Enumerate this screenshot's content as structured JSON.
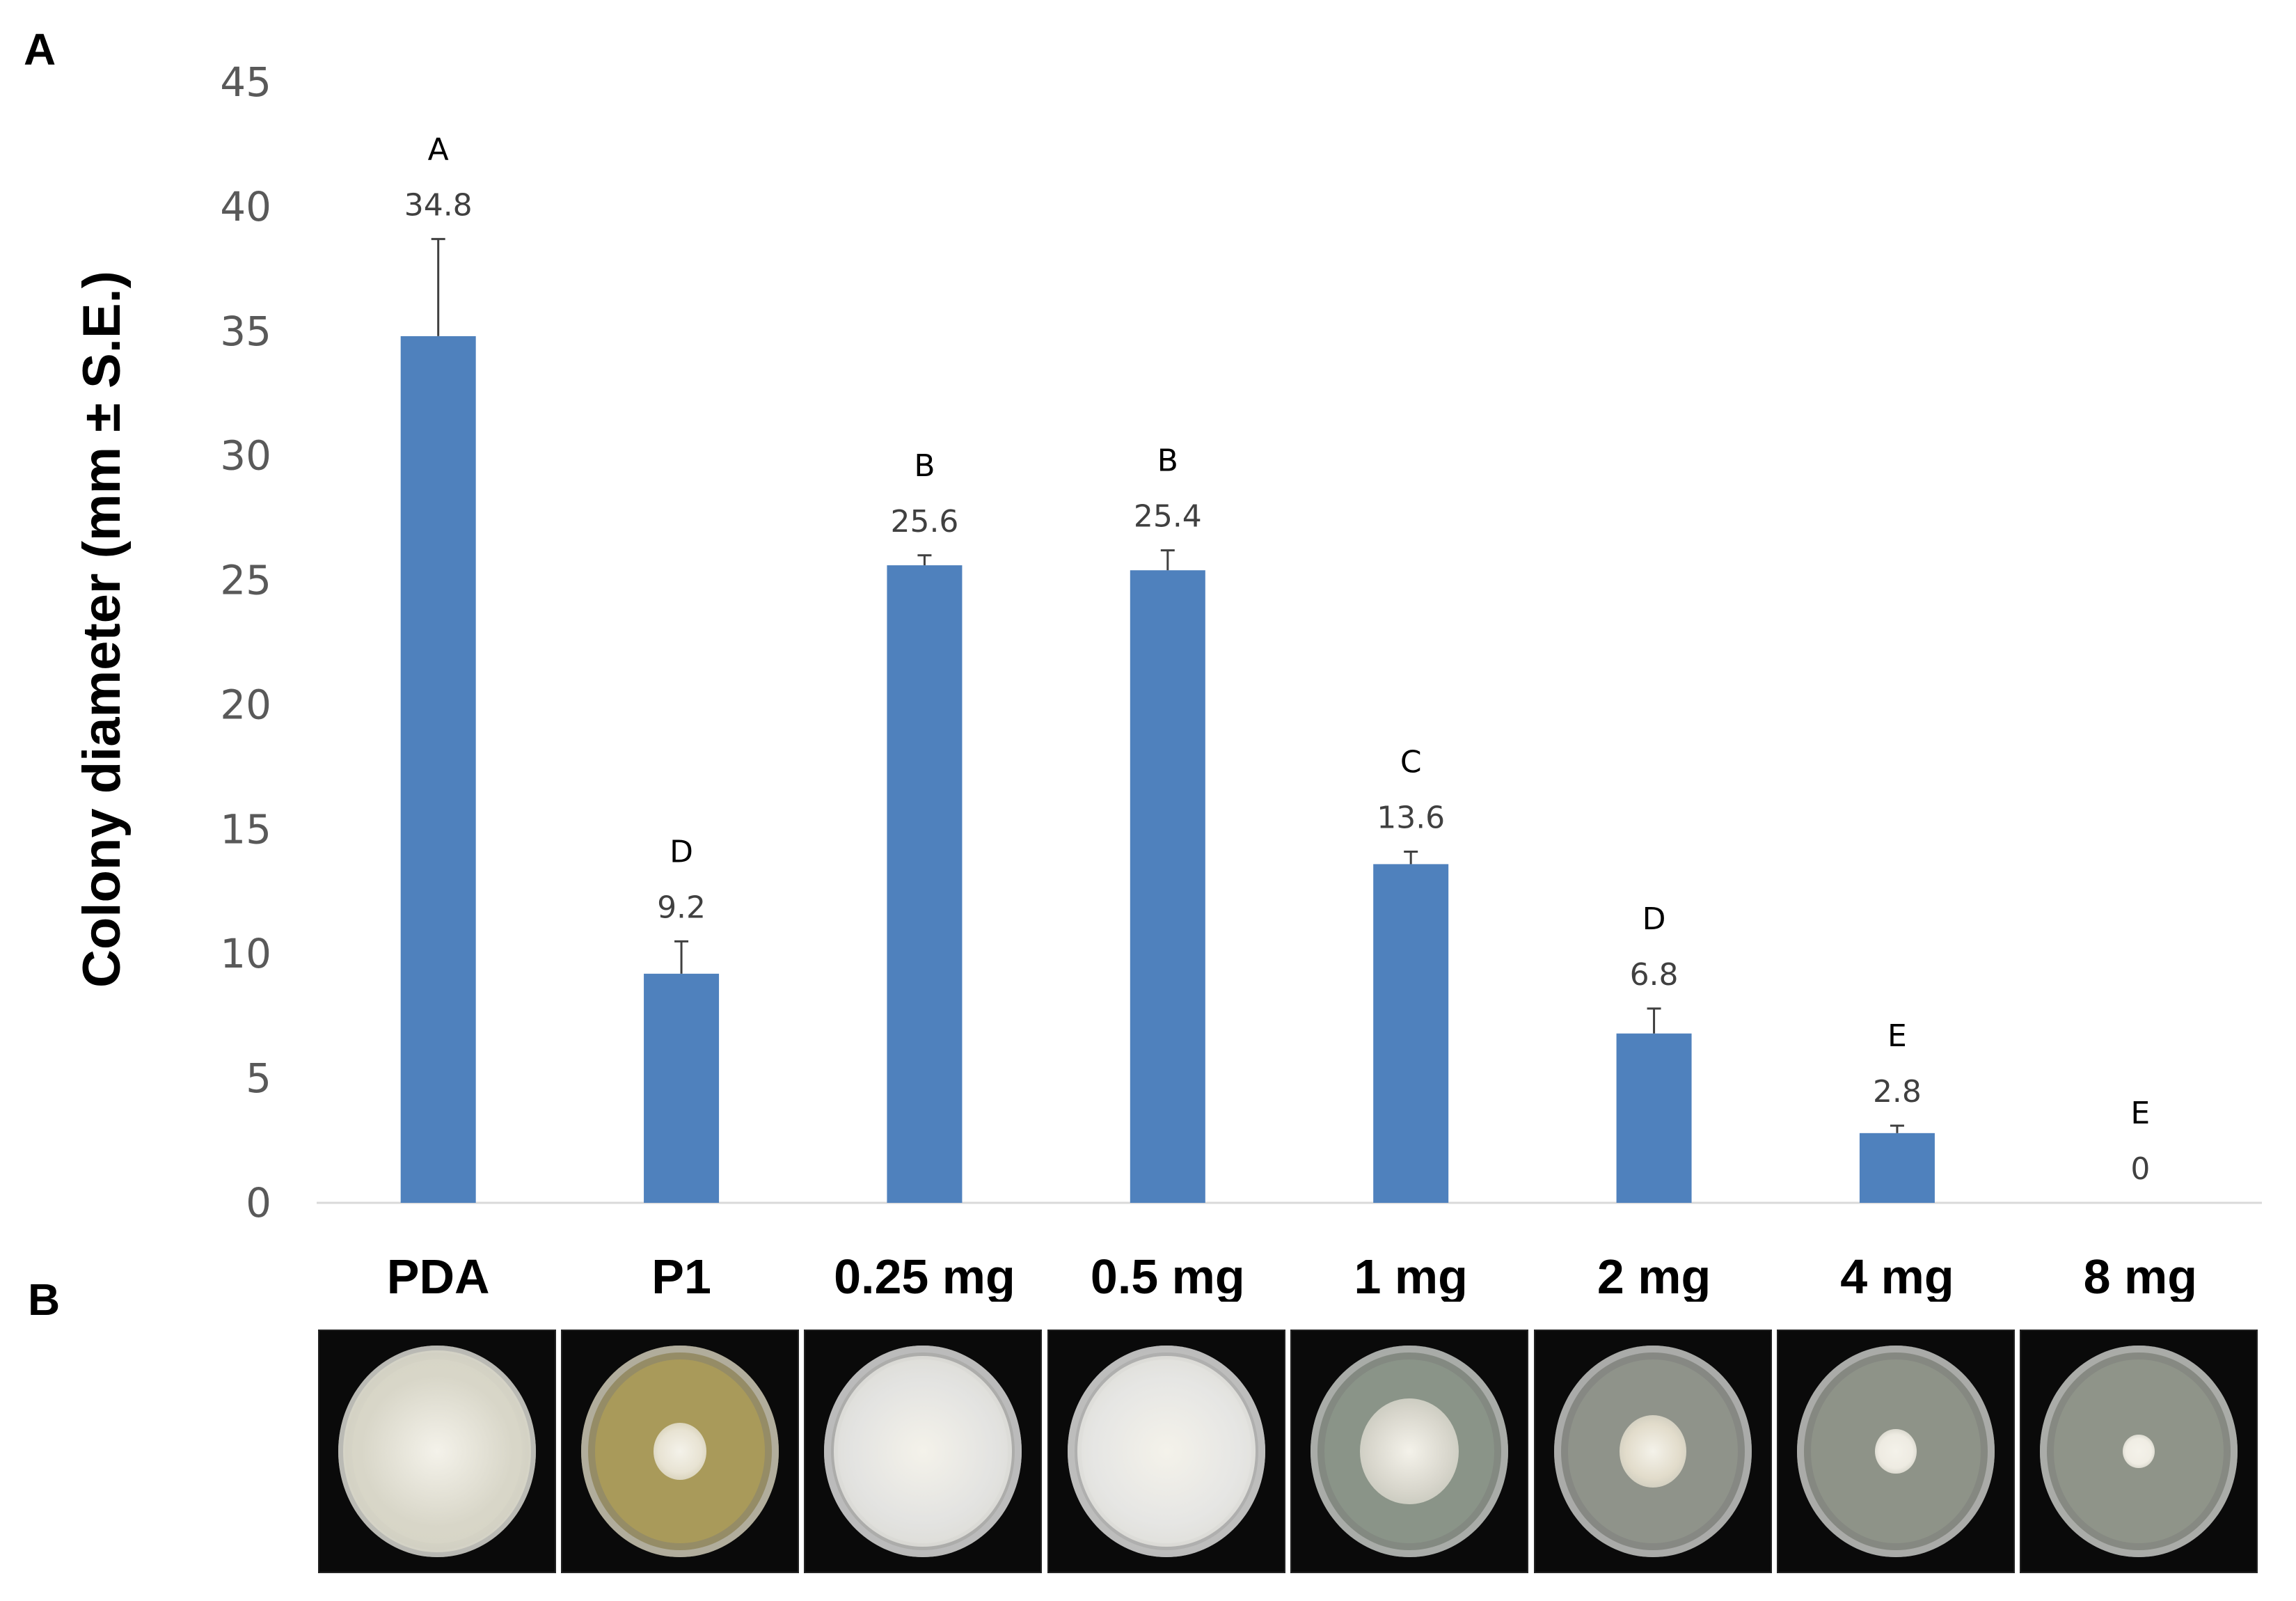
{
  "panels": {
    "a_label": "A",
    "b_label": "B"
  },
  "chart_data": {
    "type": "bar",
    "title": "",
    "xlabel": "",
    "ylabel": "Colony diameter (mm ± S.E.)",
    "ylim": [
      0,
      45
    ],
    "yticks": [
      0,
      5,
      10,
      15,
      20,
      25,
      30,
      35,
      40,
      45
    ],
    "grid": false,
    "legend": "none",
    "bar_color": "#4f81bd",
    "error_color": "#404040",
    "categories": [
      "PDA",
      "P1",
      "0.25 mg",
      "0.5 mg",
      "1 mg",
      "2 mg",
      "4 mg",
      "8 mg"
    ],
    "values": [
      34.8,
      9.2,
      25.6,
      25.4,
      13.6,
      6.8,
      2.8,
      0
    ],
    "value_labels": [
      "34.8",
      "9.2",
      "25.6",
      "25.4",
      "13.6",
      "6.8",
      "2.8",
      "0"
    ],
    "errors": [
      3.9,
      1.3,
      0.4,
      0.8,
      0.5,
      1.0,
      0.3,
      0
    ],
    "significance": [
      "A",
      "D",
      "B",
      "B",
      "C",
      "D",
      "E",
      "E"
    ]
  },
  "photos": [
    {
      "name": "PDA",
      "dish_tint": "#c9c8b4",
      "colony_color": "#d8d6c8",
      "colony_fraction": 0.95
    },
    {
      "name": "P1",
      "dish_tint": "#a99a5a",
      "colony_color": "#e8e3d3",
      "colony_fraction": 0.27
    },
    {
      "name": "0.25 mg",
      "dish_tint": "#cfcfcc",
      "colony_color": "#e3e3e1",
      "colony_fraction": 0.9
    },
    {
      "name": "0.5 mg",
      "dish_tint": "#d4d4d2",
      "colony_color": "#e6e6e4",
      "colony_fraction": 0.9
    },
    {
      "name": "1 mg",
      "dish_tint": "#8a9488",
      "colony_color": "#d8d6cc",
      "colony_fraction": 0.5
    },
    {
      "name": "2 mg",
      "dish_tint": "#8f938a",
      "colony_color": "#e2dccb",
      "colony_fraction": 0.34
    },
    {
      "name": "4 mg",
      "dish_tint": "#8e9388",
      "colony_color": "#eeebe2",
      "colony_fraction": 0.21
    },
    {
      "name": "8 mg",
      "dish_tint": "#8f9489",
      "colony_color": "#f0ede4",
      "colony_fraction": 0.16
    }
  ]
}
